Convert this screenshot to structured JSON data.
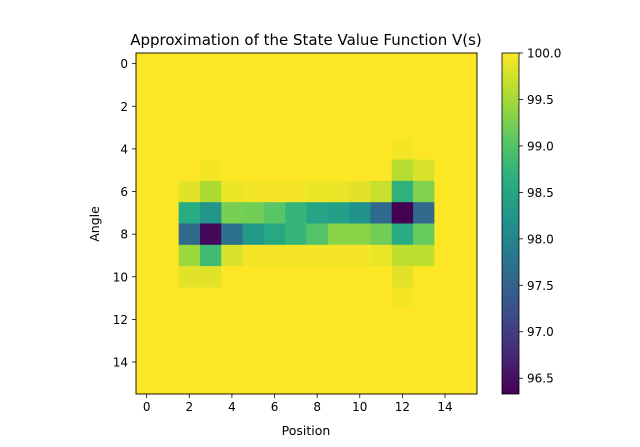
{
  "chart_data": {
    "type": "heatmap",
    "title": "Approximation of the State Value Function V(s)",
    "xlabel": "Position",
    "ylabel": "Angle",
    "n_cols": 16,
    "n_rows": 16,
    "x_ticks": [
      "0",
      "2",
      "4",
      "6",
      "8",
      "10",
      "12",
      "14"
    ],
    "y_ticks": [
      "0",
      "2",
      "4",
      "6",
      "8",
      "10",
      "12",
      "14"
    ],
    "vmin": 96.33,
    "vmax": 100.0,
    "colorbar_ticks": [
      "96.5",
      "97.0",
      "97.5",
      "98.0",
      "98.5",
      "99.0",
      "99.5",
      "100.0"
    ],
    "colormap": "viridis",
    "values": [
      [
        100,
        100,
        100,
        100,
        100,
        100,
        100,
        100,
        100,
        100,
        100,
        100,
        100,
        100,
        100,
        100
      ],
      [
        100,
        100,
        100,
        100,
        100,
        100,
        100,
        100,
        100,
        100,
        100,
        100,
        100,
        100,
        100,
        100
      ],
      [
        100,
        100,
        100,
        100,
        100,
        100,
        100,
        100,
        100,
        100,
        100,
        100,
        100,
        100,
        100,
        100
      ],
      [
        100,
        100,
        100,
        100,
        100,
        100,
        100,
        100,
        100,
        100,
        100,
        100,
        100,
        100,
        100,
        100
      ],
      [
        100,
        100,
        100,
        100,
        100,
        100,
        100,
        100,
        100,
        100,
        100,
        100,
        99.95,
        100,
        100,
        100
      ],
      [
        100,
        100,
        100,
        99.95,
        100,
        100,
        100,
        100,
        100,
        100,
        100,
        100,
        99.6,
        99.8,
        100,
        100
      ],
      [
        100,
        100,
        99.85,
        99.55,
        99.9,
        99.95,
        99.95,
        99.95,
        99.9,
        99.9,
        99.85,
        99.7,
        98.7,
        99.3,
        100,
        100
      ],
      [
        100,
        100,
        98.6,
        98.25,
        99.25,
        99.2,
        99.05,
        98.75,
        98.5,
        98.4,
        98.2,
        97.6,
        96.33,
        97.6,
        100,
        100
      ],
      [
        100,
        100,
        97.6,
        96.4,
        97.7,
        98.3,
        98.55,
        98.75,
        99.0,
        99.35,
        99.35,
        99.2,
        98.6,
        99.15,
        100,
        100
      ],
      [
        100,
        100,
        99.45,
        98.85,
        99.8,
        99.95,
        99.95,
        99.95,
        99.95,
        99.95,
        99.95,
        99.9,
        99.65,
        99.65,
        100,
        100
      ],
      [
        100,
        100,
        99.85,
        99.85,
        100,
        100,
        100,
        100,
        100,
        100,
        100,
        100,
        99.85,
        100,
        100,
        100
      ],
      [
        100,
        100,
        100,
        100,
        100,
        100,
        100,
        100,
        100,
        100,
        100,
        100,
        99.95,
        100,
        100,
        100
      ],
      [
        100,
        100,
        100,
        100,
        100,
        100,
        100,
        100,
        100,
        100,
        100,
        100,
        100,
        100,
        100,
        100
      ],
      [
        100,
        100,
        100,
        100,
        100,
        100,
        100,
        100,
        100,
        100,
        100,
        100,
        100,
        100,
        100,
        100
      ],
      [
        100,
        100,
        100,
        100,
        100,
        100,
        100,
        100,
        100,
        100,
        100,
        100,
        100,
        100,
        100,
        100
      ],
      [
        100,
        100,
        100,
        100,
        100,
        100,
        100,
        100,
        100,
        100,
        100,
        100,
        100,
        100,
        100,
        100
      ]
    ]
  }
}
